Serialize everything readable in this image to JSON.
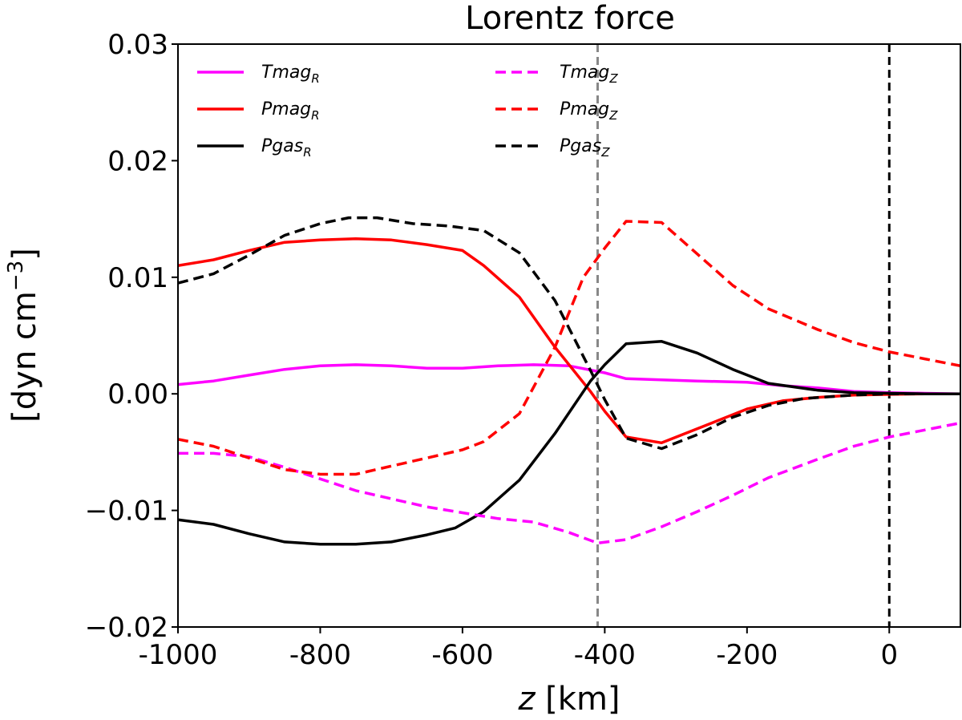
{
  "chart_data": {
    "type": "line",
    "title": "Lorentz force",
    "xlabel_italic": "z",
    "xlabel_rest": " [km]",
    "ylabel": "[dyn cm",
    "ylabel_exp": "−3",
    "ylabel_close": "]",
    "xlim": [
      -1000,
      100
    ],
    "ylim": [
      -0.02,
      0.03
    ],
    "xticks": [
      -1000,
      -800,
      -600,
      -400,
      -200,
      0
    ],
    "xtick_labels": [
      "-1000",
      "-800",
      "-600",
      "-400",
      "-200",
      "0"
    ],
    "yticks": [
      -0.02,
      -0.01,
      0.0,
      0.01,
      0.02,
      0.03
    ],
    "ytick_labels": [
      "−0.02",
      "−0.01",
      "0.00",
      "0.01",
      "0.02",
      "0.03"
    ],
    "vlines": [
      {
        "x": -410,
        "color": "#888888",
        "style": "dashed"
      },
      {
        "x": 0,
        "color": "#000000",
        "style": "dashed"
      }
    ],
    "legend_position": "top, two columns",
    "series": [
      {
        "name": "Tmag",
        "sub": "R",
        "color": "#ff00ff",
        "style": "solid",
        "x": [
          -1000,
          -950,
          -900,
          -850,
          -800,
          -750,
          -700,
          -650,
          -600,
          -550,
          -500,
          -450,
          -400,
          -370,
          -320,
          -270,
          -200,
          -150,
          -100,
          -50,
          0,
          50,
          100
        ],
        "y": [
          0.0008,
          0.0011,
          0.0016,
          0.0021,
          0.0024,
          0.0025,
          0.0024,
          0.0022,
          0.0022,
          0.0024,
          0.0025,
          0.0024,
          0.0018,
          0.0013,
          0.0012,
          0.0011,
          0.001,
          0.0007,
          0.0005,
          0.0002,
          0.0001,
          5e-05,
          0.0
        ]
      },
      {
        "name": "Pmag",
        "sub": "R",
        "color": "#ff0000",
        "style": "solid",
        "x": [
          -1000,
          -950,
          -900,
          -850,
          -800,
          -750,
          -700,
          -650,
          -600,
          -570,
          -520,
          -470,
          -420,
          -400,
          -370,
          -320,
          -270,
          -200,
          -150,
          -100,
          -50,
          0,
          50,
          100
        ],
        "y": [
          0.011,
          0.0115,
          0.0123,
          0.013,
          0.0132,
          0.0133,
          0.0132,
          0.0128,
          0.0123,
          0.011,
          0.0083,
          0.004,
          0.0002,
          -0.0015,
          -0.0037,
          -0.0042,
          -0.003,
          -0.0013,
          -0.0006,
          -0.0003,
          -0.0001,
          -5e-05,
          0.0,
          0.0
        ]
      },
      {
        "name": "Pgas",
        "sub": "R",
        "color": "#000000",
        "style": "solid",
        "x": [
          -1000,
          -950,
          -900,
          -850,
          -800,
          -750,
          -700,
          -650,
          -610,
          -570,
          -520,
          -470,
          -420,
          -400,
          -370,
          -320,
          -270,
          -220,
          -170,
          -100,
          -50,
          0,
          50,
          100
        ],
        "y": [
          -0.0108,
          -0.0112,
          -0.012,
          -0.0127,
          -0.0129,
          -0.0129,
          -0.0127,
          -0.0121,
          -0.0115,
          -0.0101,
          -0.0074,
          -0.0034,
          0.0011,
          0.0025,
          0.0043,
          0.0045,
          0.0035,
          0.0021,
          0.0009,
          0.0003,
          0.0001,
          5e-05,
          0.0,
          0.0
        ]
      },
      {
        "name": "Tmag",
        "sub": "Z",
        "color": "#ff00ff",
        "style": "dashed",
        "x": [
          -1000,
          -950,
          -900,
          -850,
          -800,
          -750,
          -700,
          -650,
          -600,
          -550,
          -500,
          -450,
          -410,
          -370,
          -320,
          -270,
          -220,
          -170,
          -100,
          -50,
          0,
          50,
          100
        ],
        "y": [
          -0.0051,
          -0.0051,
          -0.0054,
          -0.0063,
          -0.0073,
          -0.0083,
          -0.009,
          -0.0097,
          -0.0102,
          -0.0107,
          -0.011,
          -0.0119,
          -0.0128,
          -0.0125,
          -0.0114,
          -0.0101,
          -0.0087,
          -0.0072,
          -0.0056,
          -0.0045,
          -0.0037,
          -0.0031,
          -0.0025
        ]
      },
      {
        "name": "Pmag",
        "sub": "Z",
        "color": "#ff0000",
        "style": "dashed",
        "x": [
          -1000,
          -950,
          -900,
          -850,
          -800,
          -750,
          -700,
          -650,
          -600,
          -570,
          -520,
          -470,
          -430,
          -400,
          -370,
          -320,
          -270,
          -220,
          -170,
          -100,
          -50,
          0,
          50,
          100
        ],
        "y": [
          -0.0039,
          -0.0045,
          -0.0055,
          -0.0065,
          -0.0069,
          -0.0069,
          -0.0062,
          -0.0055,
          -0.0048,
          -0.0041,
          -0.0017,
          0.004,
          0.01,
          0.0125,
          0.0148,
          0.0147,
          0.012,
          0.0093,
          0.0073,
          0.0055,
          0.0044,
          0.0036,
          0.003,
          0.0024
        ]
      },
      {
        "name": "Pgas",
        "sub": "Z",
        "color": "#000000",
        "style": "dashed",
        "x": [
          -1000,
          -950,
          -900,
          -850,
          -800,
          -760,
          -720,
          -670,
          -620,
          -570,
          -520,
          -470,
          -420,
          -400,
          -370,
          -320,
          -270,
          -220,
          -170,
          -120,
          -50,
          0,
          50,
          100
        ],
        "y": [
          0.0095,
          0.0103,
          0.0119,
          0.0136,
          0.0146,
          0.0151,
          0.0151,
          0.0146,
          0.0144,
          0.014,
          0.0121,
          0.008,
          0.002,
          -0.0005,
          -0.0038,
          -0.0047,
          -0.0035,
          -0.002,
          -0.001,
          -0.0004,
          -0.0001,
          0.0,
          0.0,
          0.0
        ]
      }
    ]
  }
}
